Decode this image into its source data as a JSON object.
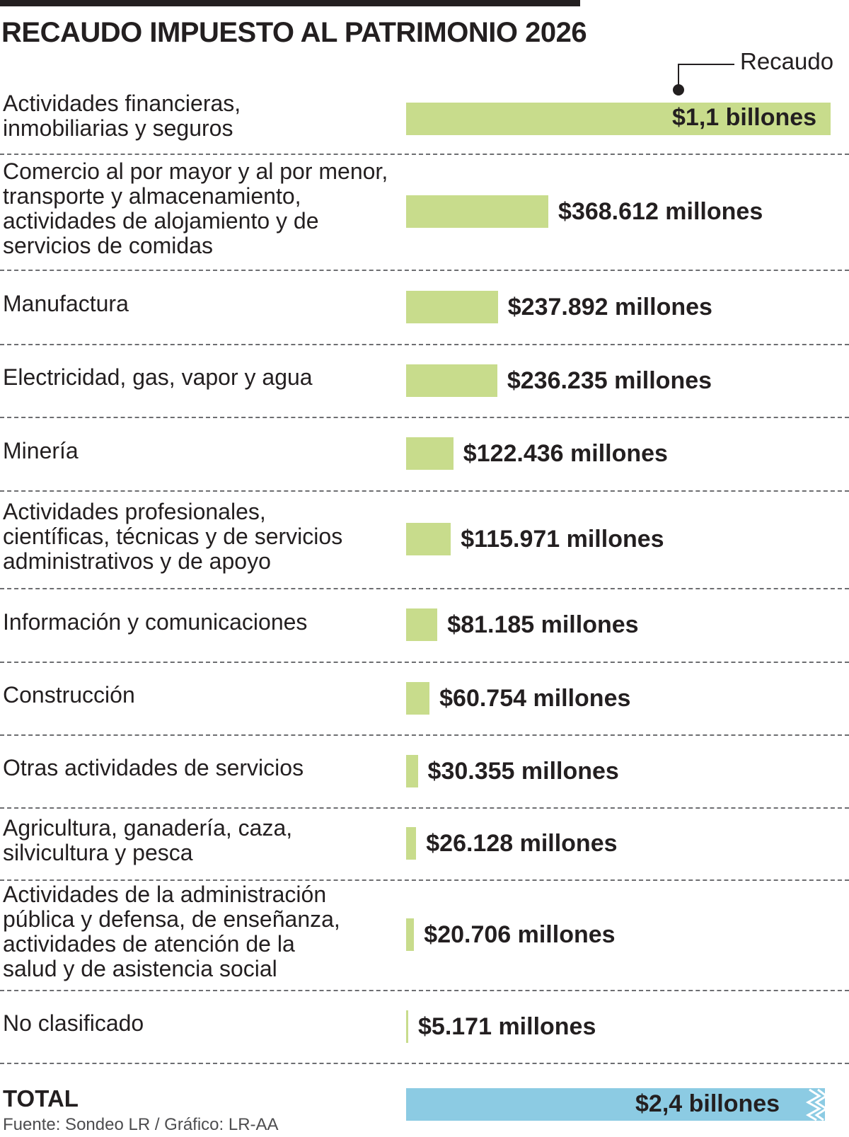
{
  "title": "RECAUDO IMPUESTO AL PATRIMONIO 2026",
  "legend": {
    "label": "Recaudo"
  },
  "colors": {
    "bar": "#c8dc8c",
    "total_bar": "#8ccbe3",
    "text": "#231f20",
    "separator": "#6d6e71"
  },
  "chart_data": {
    "type": "bar",
    "orientation": "horizontal",
    "title": "RECAUDO IMPUESTO AL PATRIMONIO 2026",
    "unit": "millones de pesos",
    "categories": [
      "Actividades financieras,\ninmobiliarias y seguros",
      "Comercio al por mayor y al por menor,\ntransporte y almacenamiento,\nactividades de alojamiento y de\nservicios de comidas",
      "Manufactura",
      "Electricidad, gas, vapor y agua",
      "Minería",
      "Actividades profesionales,\ncientíficas, técnicas y de servicios\nadministrativos y de apoyo",
      "Información y comunicaciones",
      "Construcción",
      "Otras actividades de servicios",
      "Agricultura, ganadería, caza,\nsilvicultura y pesca",
      "Actividades de la administración\npública y defensa, de enseñanza,\nactividades de atención de la\nsalud y de asistencia social",
      "No clasificado"
    ],
    "values": [
      1100000,
      368612,
      237892,
      236235,
      122436,
      115971,
      81185,
      60754,
      30355,
      26128,
      20706,
      5171
    ],
    "value_labels": [
      "$1,1 billones",
      "$368.612 millones",
      "$237.892 millones",
      "$236.235 millones",
      "$122.436 millones",
      "$115.971 millones",
      "$81.185 millones",
      "$60.754 millones",
      "$30.355 millones",
      "$26.128 millones",
      "$20.706 millones",
      "$5.171 millones"
    ],
    "series": [
      {
        "name": "Recaudo",
        "values": [
          1100000,
          368612,
          237892,
          236235,
          122436,
          115971,
          81185,
          60754,
          30355,
          26128,
          20706,
          5171
        ]
      }
    ],
    "total": {
      "label": "TOTAL",
      "value": 2400000,
      "value_label": "$2,4 billones"
    },
    "grid": false,
    "legend_position": "top-right"
  },
  "source": "Fuente: Sondeo LR / Gráfico: LR-AA"
}
